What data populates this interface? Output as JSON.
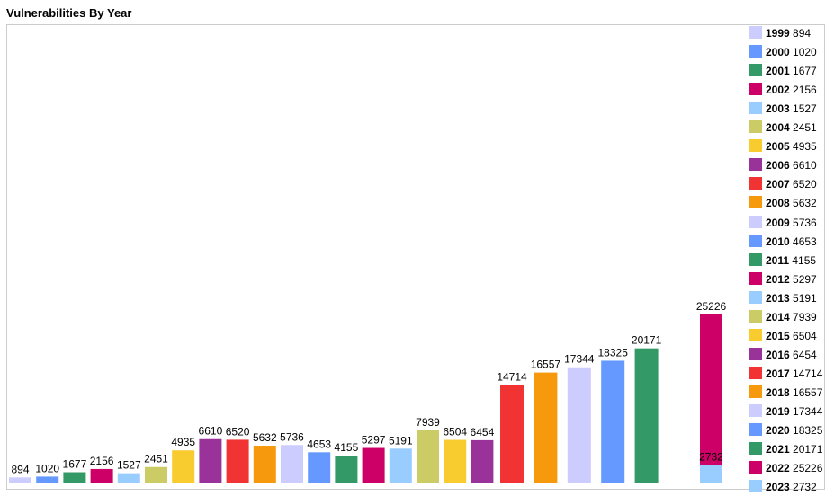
{
  "title": "Vulnerabilities By Year",
  "chart_data": {
    "type": "bar",
    "title": "Vulnerabilities By Year",
    "categories": [
      "1999",
      "2000",
      "2001",
      "2002",
      "2003",
      "2004",
      "2005",
      "2006",
      "2007",
      "2008",
      "2009",
      "2010",
      "2011",
      "2012",
      "2013",
      "2014",
      "2015",
      "2016",
      "2017",
      "2018",
      "2019",
      "2020",
      "2021",
      "2022",
      "2023"
    ],
    "values": [
      894,
      1020,
      1677,
      2156,
      1527,
      2451,
      4935,
      6610,
      6520,
      5632,
      5736,
      4653,
      4155,
      5297,
      5191,
      7939,
      6504,
      6454,
      14714,
      16557,
      17344,
      18325,
      20171,
      25226,
      2732
    ],
    "colors": [
      "#ccccff",
      "#6699ff",
      "#339966",
      "#cc0066",
      "#99ccff",
      "#cccc66",
      "#f8cb2e",
      "#993399",
      "#f23333",
      "#f7990c",
      "#ccccff",
      "#6699ff",
      "#339966",
      "#cc0066",
      "#99ccff",
      "#cccc66",
      "#f8cb2e",
      "#993399",
      "#f23333",
      "#f7990c",
      "#ccccff",
      "#6699ff",
      "#339966",
      "#cc0066",
      "#99ccff"
    ],
    "legend": "right",
    "data_labels": true,
    "grid": false,
    "ylim": [
      0,
      25226
    ]
  }
}
